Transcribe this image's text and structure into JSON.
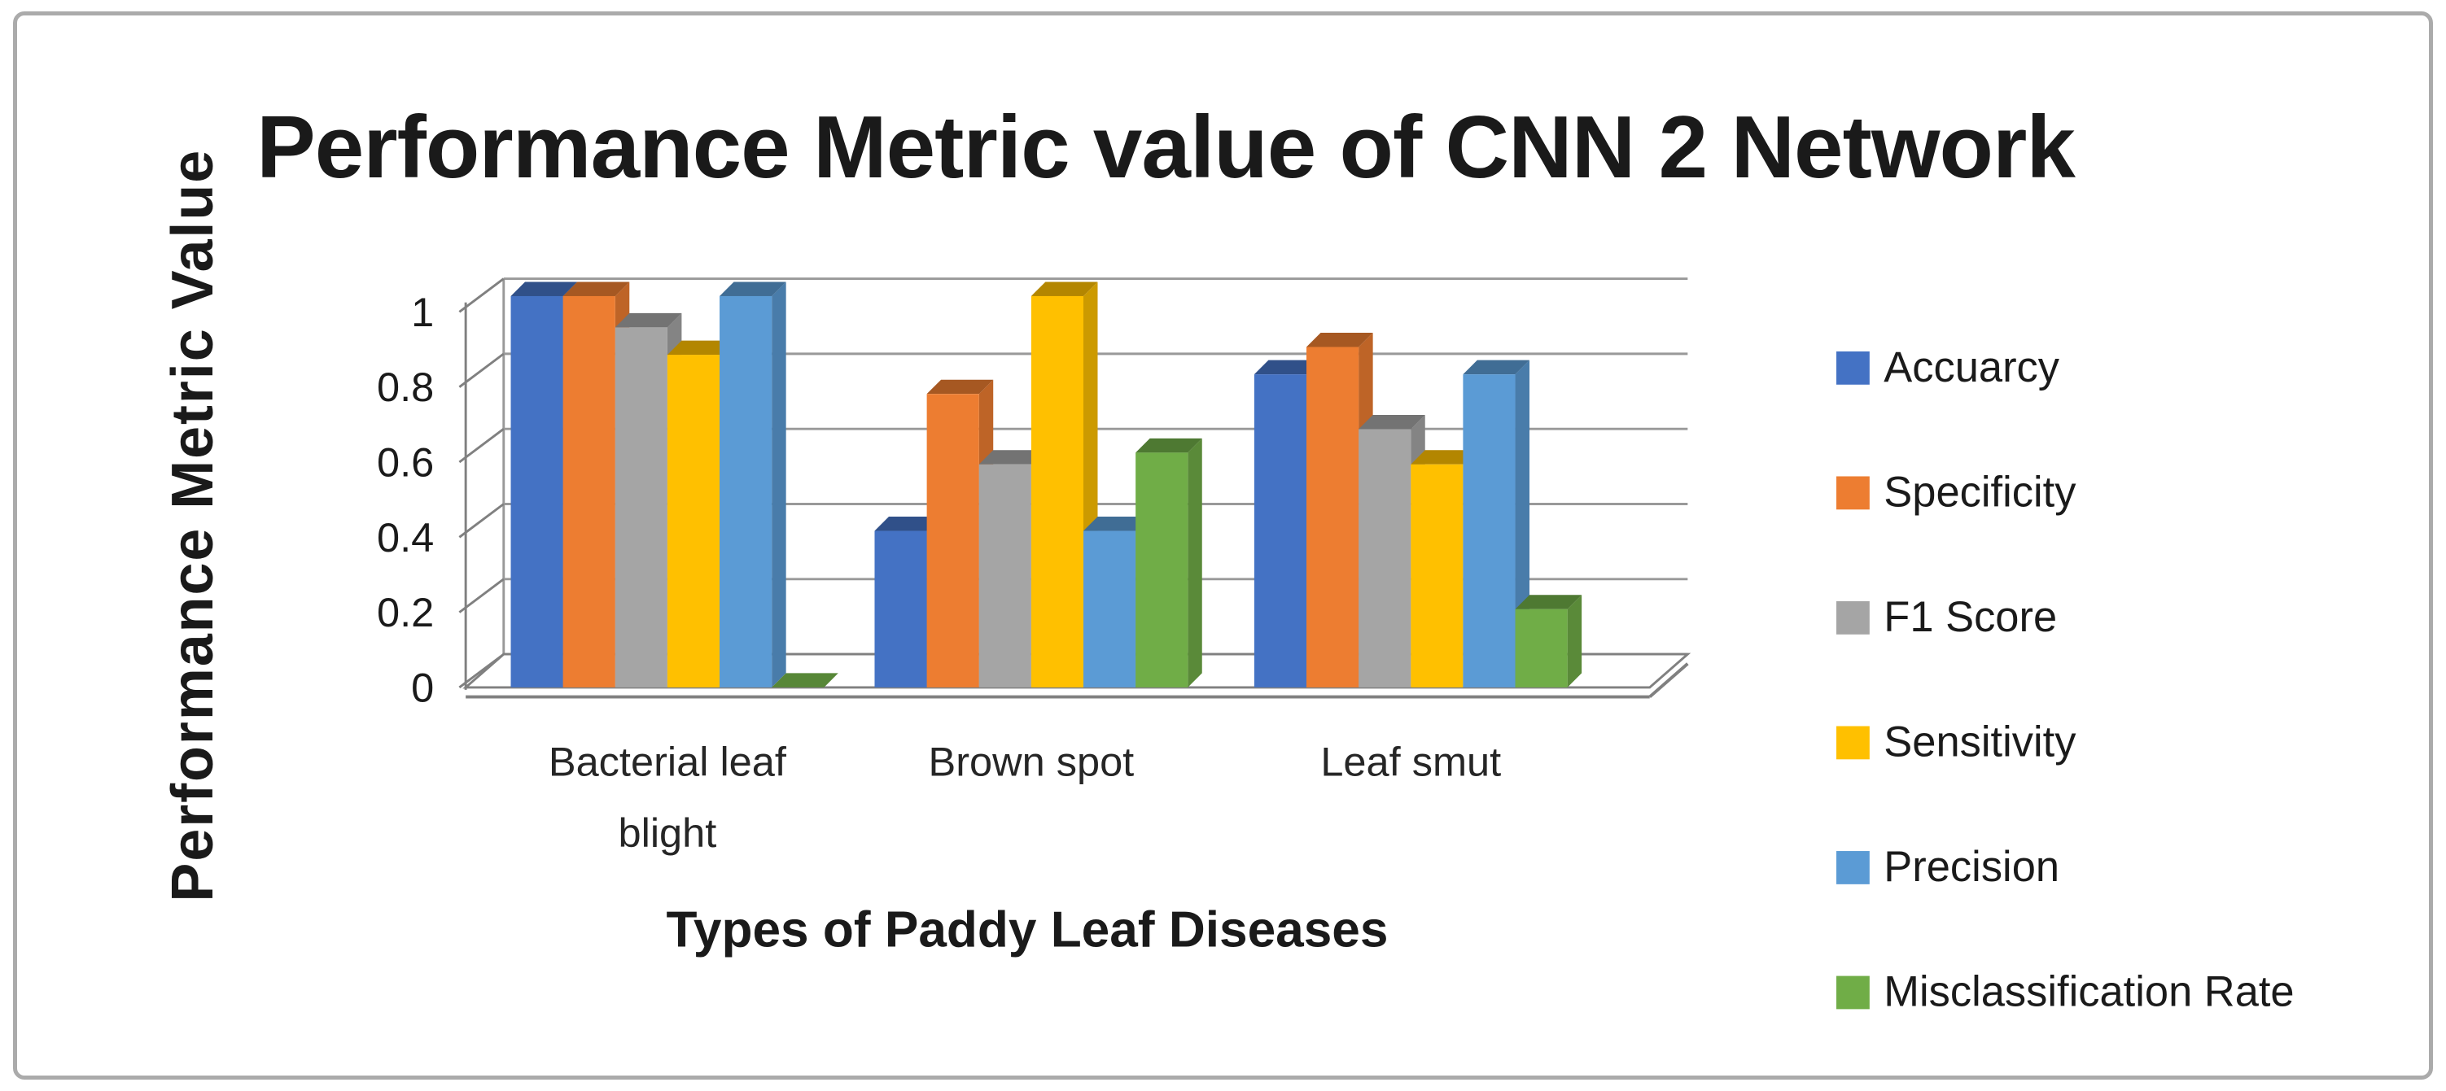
{
  "figure": {
    "title": "Performance Metric value of CNN 2 Network",
    "border_color": "#ababab",
    "background": "#ffffff"
  },
  "chart_data": {
    "type": "bar",
    "subtype": "3d-clustered-column",
    "title": "Performance Metric value of CNN 2 Network",
    "xlabel": "Types of Paddy Leaf Diseases",
    "ylabel": "Performance Metric Value",
    "categories": [
      "Bacterial leaf blight",
      "Brown spot",
      "Leaf smut"
    ],
    "series": [
      {
        "name": "Accuarcy",
        "color": "#4472C4",
        "values": [
          1,
          0.4,
          0.8
        ]
      },
      {
        "name": "Specificity",
        "color": "#ED7D31",
        "values": [
          1,
          0.75,
          0.87
        ]
      },
      {
        "name": "F1 Score",
        "color": "#A5A5A5",
        "values": [
          0.92,
          0.57,
          0.66
        ]
      },
      {
        "name": "Sensitivity",
        "color": "#FFC000",
        "values": [
          0.85,
          1,
          0.57
        ]
      },
      {
        "name": "Precision",
        "color": "#5B9BD5",
        "values": [
          1,
          0.4,
          0.8
        ]
      },
      {
        "name": "Misclassification Rate",
        "color": "#70AD47",
        "values": [
          0,
          0.6,
          0.2
        ]
      }
    ],
    "y_ticks": [
      "0",
      "0.2",
      "0.4",
      "0.6",
      "0.8",
      "1"
    ],
    "ylim": [
      0,
      1
    ],
    "grid": true,
    "grid_color": "#999999",
    "axis_color": "#808080",
    "legend_position": "right"
  }
}
